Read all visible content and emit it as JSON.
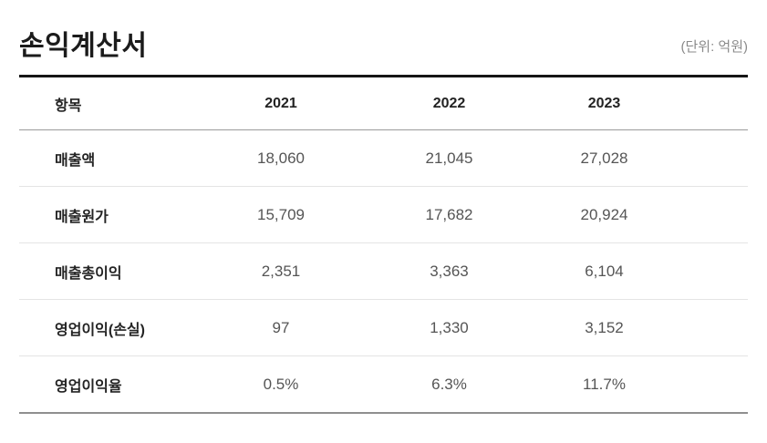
{
  "page": {
    "title": "손익계산서",
    "unit_label": "(단위: 억원)"
  },
  "table": {
    "columns": [
      "항목",
      "2021",
      "2022",
      "2023"
    ],
    "rows": [
      {
        "label": "매출액",
        "values": [
          "18,060",
          "21,045",
          "27,028"
        ]
      },
      {
        "label": "매출원가",
        "values": [
          "15,709",
          "17,682",
          "20,924"
        ]
      },
      {
        "label": "매출총이익",
        "values": [
          "2,351",
          "3,363",
          "6,104"
        ]
      },
      {
        "label": "영업이익(손실)",
        "values": [
          "97",
          "1,330",
          "3,152"
        ]
      },
      {
        "label": "영업이익율",
        "values": [
          "0.5%",
          "6.3%",
          "11.7%"
        ]
      }
    ]
  },
  "colors": {
    "text_primary": "#222222",
    "text_value": "#555555",
    "text_muted": "#8a8a8a",
    "border_top": "#161616",
    "border_header": "#9b9b9b",
    "border_row": "#e4e4e4",
    "border_bottom": "#8f8f8f"
  }
}
